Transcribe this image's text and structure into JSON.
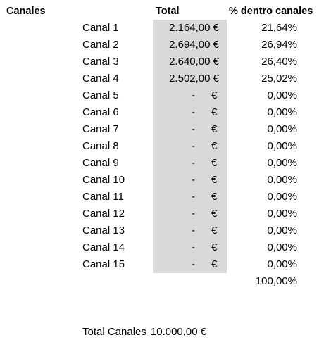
{
  "headers": {
    "canales": "Canales",
    "total": "Total",
    "percent": "% dentro canales"
  },
  "rows": [
    {
      "name": "Canal 1",
      "total": "2.164,00 €",
      "pct": "21,64%"
    },
    {
      "name": "Canal 2",
      "total": "2.694,00 €",
      "pct": "26,94%"
    },
    {
      "name": "Canal 3",
      "total": "2.640,00 €",
      "pct": "26,40%"
    },
    {
      "name": "Canal 4",
      "total": "2.502,00 €",
      "pct": "25,02%"
    },
    {
      "name": "Canal 5",
      "dash": "-",
      "euro": "€",
      "pct": "0,00%"
    },
    {
      "name": "Canal 6",
      "dash": "-",
      "euro": "€",
      "pct": "0,00%"
    },
    {
      "name": "Canal 7",
      "dash": "-",
      "euro": "€",
      "pct": "0,00%"
    },
    {
      "name": "Canal 8",
      "dash": "-",
      "euro": "€",
      "pct": "0,00%"
    },
    {
      "name": "Canal 9",
      "dash": "-",
      "euro": "€",
      "pct": "0,00%"
    },
    {
      "name": "Canal 10",
      "dash": "-",
      "euro": "€",
      "pct": "0,00%"
    },
    {
      "name": "Canal 11",
      "dash": "-",
      "euro": "€",
      "pct": "0,00%"
    },
    {
      "name": "Canal 12",
      "dash": "-",
      "euro": "€",
      "pct": "0,00%"
    },
    {
      "name": "Canal 13",
      "dash": "-",
      "euro": "€",
      "pct": "0,00%"
    },
    {
      "name": "Canal 14",
      "dash": "-",
      "euro": "€",
      "pct": "0,00%"
    },
    {
      "name": "Canal 15",
      "dash": "-",
      "euro": "€",
      "pct": "0,00%"
    }
  ],
  "sum_pct": "100,00%",
  "footer": {
    "label": "Total Canales",
    "value": "10.000,00 €"
  },
  "colors": {
    "total_fill": "#d9d9d9"
  }
}
